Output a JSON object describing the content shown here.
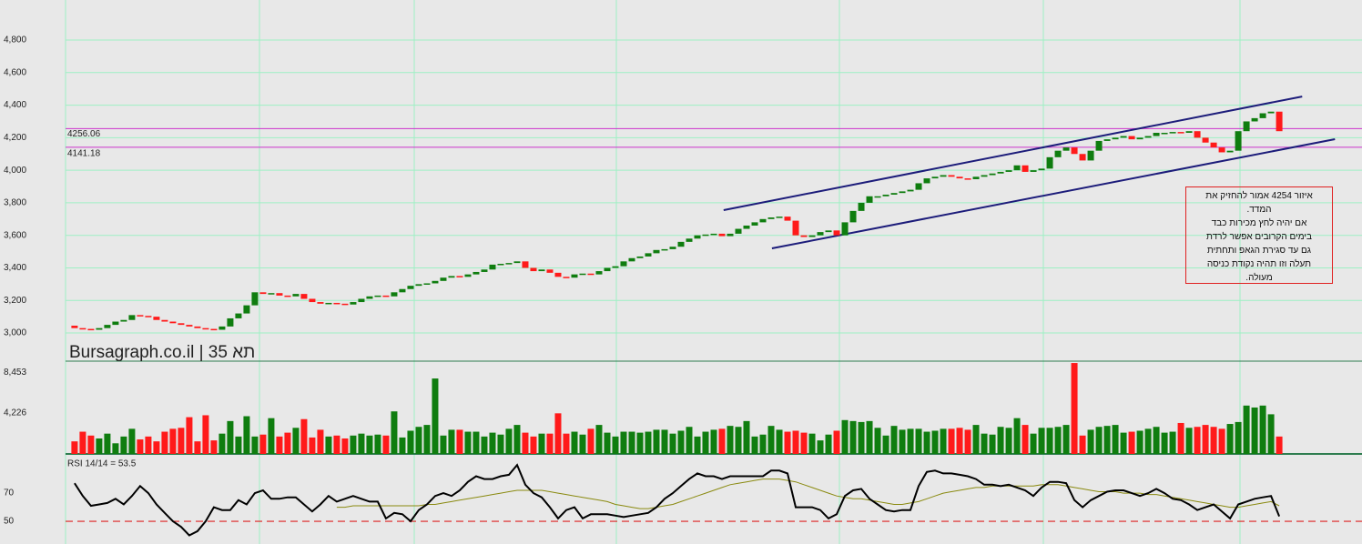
{
  "chart_data": [
    {
      "type": "candlestick",
      "watermark": "Bursagraph.co.il | תא 35",
      "xlim": [
        -1.1,
        157.1
      ],
      "ylim": [
        2827,
        5046
      ],
      "yticks": [
        {
          "value": 3000,
          "label": "3,000"
        },
        {
          "value": 3200,
          "label": "3,200"
        },
        {
          "value": 3400,
          "label": "3,400"
        },
        {
          "value": 3600,
          "label": "3,600"
        },
        {
          "value": 3800,
          "label": "3,800"
        },
        {
          "value": 4000,
          "label": "4,000"
        },
        {
          "value": 4200,
          "label": "4,200"
        },
        {
          "value": 4400,
          "label": "4,400"
        },
        {
          "value": 4600,
          "label": "4,600"
        },
        {
          "value": 4800,
          "label": "4,800"
        }
      ],
      "grid": true,
      "up_color": "#0f7d0f",
      "down_color": "#ff1a1a",
      "levels": [
        4256.06,
        4141.18
      ],
      "level_color": "#cc33cc",
      "trendlines": [
        {
          "x": [
            79.2,
            149.8
          ],
          "y": [
            3755,
            4453
          ]
        },
        {
          "x": [
            85.1,
            153.8
          ],
          "y": [
            3520,
            4191
          ]
        }
      ],
      "trendline_color": "#1c1c7a",
      "annotation": [
        "איזור 4254 אמור להחזיק את",
        "המדד.",
        "אם יהיה לחץ מכירות כבד",
        "בימים הקרובים אפשר לרדת",
        "גם עד סגירת הגאפ ותחתית",
        "תעלה וזו תהיה נקודת כניסה",
        "מעולה."
      ],
      "open": [
        3045,
        3030,
        3025,
        3020,
        3030,
        3050,
        3070,
        3080,
        3110,
        3105,
        3100,
        3080,
        3070,
        3060,
        3050,
        3040,
        3030,
        3025,
        3020,
        3040,
        3090,
        3120,
        3170,
        3250,
        3240,
        3245,
        3230,
        3225,
        3240,
        3210,
        3190,
        3180,
        3185,
        3180,
        3175,
        3190,
        3210,
        3225,
        3230,
        3225,
        3250,
        3270,
        3290,
        3300,
        3305,
        3320,
        3340,
        3350,
        3345,
        3360,
        3375,
        3390,
        3420,
        3425,
        3430,
        3440,
        3400,
        3380,
        3390,
        3370,
        3345,
        3340,
        3360,
        3365,
        3360,
        3380,
        3400,
        3410,
        3440,
        3460,
        3470,
        3490,
        3510,
        3515,
        3530,
        3560,
        3580,
        3600,
        3605,
        3610,
        3595,
        3610,
        3640,
        3660,
        3680,
        3700,
        3710,
        3715,
        3690,
        3600,
        3590,
        3600,
        3620,
        3630,
        3600,
        3680,
        3750,
        3800,
        3840,
        3840,
        3850,
        3860,
        3870,
        3880,
        3920,
        3950,
        3960,
        3970,
        3960,
        3950,
        3945,
        3960,
        3970,
        3980,
        3990,
        4000,
        4030,
        3990,
        4000,
        4010,
        4080,
        4120,
        4140,
        4100,
        4060,
        4120,
        4180,
        4190,
        4200,
        4210,
        4190,
        4200,
        4210,
        4230,
        4230,
        4235,
        4230,
        4240,
        4200,
        4170,
        4140,
        4110,
        4120,
        4240,
        4300,
        4320,
        4350,
        4360
      ],
      "close": [
        3030,
        3025,
        3020,
        3030,
        3050,
        3070,
        3080,
        3110,
        3105,
        3100,
        3080,
        3070,
        3060,
        3050,
        3040,
        3030,
        3025,
        3020,
        3040,
        3090,
        3120,
        3170,
        3250,
        3240,
        3245,
        3230,
        3225,
        3240,
        3210,
        3190,
        3180,
        3185,
        3180,
        3175,
        3190,
        3210,
        3225,
        3230,
        3225,
        3250,
        3270,
        3290,
        3300,
        3305,
        3320,
        3340,
        3350,
        3345,
        3360,
        3375,
        3390,
        3420,
        3425,
        3430,
        3440,
        3400,
        3380,
        3390,
        3370,
        3345,
        3340,
        3360,
        3365,
        3360,
        3380,
        3400,
        3410,
        3440,
        3460,
        3470,
        3490,
        3510,
        3515,
        3530,
        3560,
        3580,
        3600,
        3605,
        3610,
        3595,
        3610,
        3640,
        3660,
        3680,
        3700,
        3710,
        3715,
        3690,
        3600,
        3590,
        3600,
        3620,
        3630,
        3600,
        3680,
        3750,
        3800,
        3840,
        3840,
        3850,
        3860,
        3870,
        3880,
        3920,
        3950,
        3960,
        3970,
        3960,
        3950,
        3945,
        3960,
        3970,
        3980,
        3990,
        4000,
        4030,
        3990,
        4000,
        4010,
        4080,
        4120,
        4140,
        4100,
        4060,
        4120,
        4180,
        4190,
        4200,
        4210,
        4190,
        4200,
        4210,
        4230,
        4230,
        4235,
        4230,
        4240,
        4200,
        4170,
        4140,
        4110,
        4120,
        4240,
        4300,
        4320,
        4350,
        4360,
        4240
      ]
    },
    {
      "type": "bar",
      "ylim": [
        0,
        9593
      ],
      "grid": false,
      "yticks": [
        {
          "value": 4226,
          "label": "4,226"
        },
        {
          "value": 8453,
          "label": "8,453"
        }
      ],
      "series": [
        {
          "values": [
            1300,
            2300,
            1900,
            1600,
            2100,
            1100,
            1800,
            2600,
            1500,
            1800,
            1300,
            2300,
            2600,
            2700,
            3800,
            1300,
            4000,
            1400,
            2100,
            3400,
            1800,
            3900,
            1800,
            2000,
            3700,
            1800,
            2200,
            2700,
            3600,
            1700,
            2500,
            1800,
            1900,
            1600,
            1900,
            2100,
            1900,
            2000,
            1900,
            4400,
            1700,
            2400,
            2800,
            3000,
            7800,
            1900,
            2500,
            2500,
            2300,
            2300,
            1800,
            2200,
            2000,
            2600,
            3000,
            2200,
            1800,
            2100,
            2100,
            4200,
            2100,
            2300,
            2000,
            2600,
            3000,
            2200,
            1800,
            2300,
            2300,
            2200,
            2300,
            2500,
            2500,
            2100,
            2400,
            2800,
            1800,
            2300,
            2500,
            2600,
            2900,
            2800,
            3400,
            1800,
            2000,
            2900,
            2500,
            2300,
            2400,
            2200,
            2100,
            1400,
            2000,
            2400,
            3500,
            3400,
            3300,
            3400,
            2700,
            1900,
            2900,
            2500,
            2600,
            2600,
            2300,
            2400,
            2600,
            2600,
            2700,
            2500,
            3000,
            2100,
            2000,
            2800,
            2700,
            3700,
            3000,
            2100,
            2700,
            2700,
            2800,
            3000,
            9400,
            1900,
            2500,
            2800,
            2900,
            3000,
            2200,
            2300,
            2400,
            2600,
            2800,
            2200,
            2300,
            3200,
            2700,
            2800,
            3000,
            2800,
            2600,
            3100,
            3300,
            5000,
            4800,
            5000,
            4100,
            1800
          ]
        }
      ]
    },
    {
      "type": "line",
      "title": "RSI 14/14 = 53.5",
      "ylim": [
        33.9,
        95.2
      ],
      "yticks": [
        50,
        70
      ],
      "grid": false,
      "reference_line": 50,
      "reference_color": "#dd2222",
      "series": [
        {
          "color": "#000000",
          "values": [
            77,
            68,
            61,
            62,
            63,
            66,
            62,
            68,
            75,
            70,
            62,
            56,
            50,
            46,
            40,
            43,
            50,
            60,
            58,
            58,
            65,
            62,
            70,
            72,
            66,
            66,
            67,
            67,
            62,
            57,
            62,
            68,
            64,
            66,
            68,
            66,
            64,
            64,
            52,
            56,
            55,
            50,
            58,
            62,
            68,
            70,
            68,
            72,
            78,
            82,
            80,
            80,
            82,
            83,
            90,
            76,
            70,
            67,
            60,
            52,
            58,
            60,
            52,
            55,
            55,
            55,
            54,
            53,
            54,
            55,
            56,
            60,
            66,
            70,
            75,
            80,
            84,
            82,
            82,
            80,
            82,
            82,
            82,
            82,
            82,
            86,
            86,
            84,
            60,
            60,
            60,
            58,
            52,
            55,
            68,
            72,
            73,
            66,
            62,
            58,
            57,
            58,
            58,
            75,
            85,
            86,
            84,
            84,
            83,
            82,
            80,
            76,
            76,
            75,
            76,
            74,
            72,
            68,
            74,
            78,
            78,
            77,
            65,
            60,
            65,
            68,
            71,
            72,
            72,
            70,
            68,
            70,
            73,
            70,
            66,
            65,
            62,
            58,
            60,
            62,
            57,
            52,
            62,
            64,
            66,
            67,
            68,
            53.5
          ]
        },
        {
          "color": "#8a8a10",
          "values": [
            null,
            null,
            null,
            null,
            null,
            null,
            null,
            null,
            null,
            null,
            null,
            null,
            null,
            null,
            null,
            null,
            null,
            null,
            null,
            null,
            null,
            null,
            null,
            null,
            null,
            null,
            null,
            null,
            null,
            null,
            null,
            null,
            60,
            60,
            61,
            61,
            61,
            61,
            61,
            61,
            61,
            61,
            61,
            62,
            62,
            63,
            64,
            65,
            66,
            67,
            68,
            69,
            70,
            71,
            72,
            72,
            72,
            72,
            71,
            70,
            69,
            68,
            67,
            66,
            65,
            64,
            62,
            61,
            60,
            59,
            59,
            60,
            61,
            62,
            64,
            66,
            68,
            70,
            72,
            74,
            76,
            77,
            78,
            79,
            80,
            80,
            80,
            79,
            78,
            76,
            74,
            72,
            70,
            68,
            67,
            66,
            66,
            65,
            64,
            63,
            62,
            62,
            63,
            64,
            66,
            68,
            70,
            71,
            72,
            73,
            74,
            74,
            75,
            75,
            75,
            75,
            75,
            75,
            76,
            76,
            76,
            75,
            74,
            73,
            72,
            71,
            71,
            71,
            70,
            70,
            70,
            69,
            69,
            68,
            67,
            66,
            65,
            64,
            63,
            62,
            61,
            60,
            60,
            61,
            62,
            63,
            64,
            61
          ]
        }
      ]
    }
  ]
}
